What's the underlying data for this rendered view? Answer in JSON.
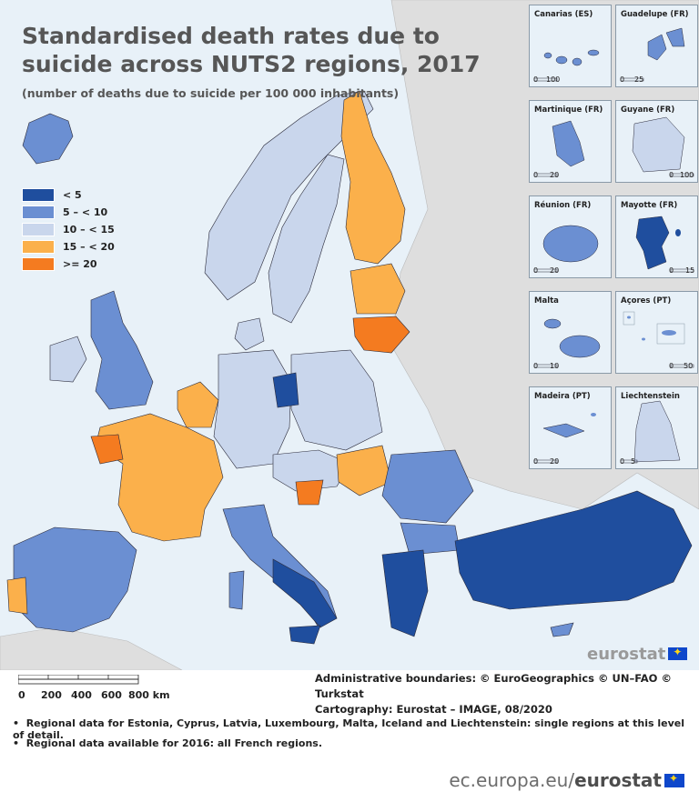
{
  "title": "Standardised death rates due to suicide across NUTS2 regions, 2017",
  "subtitle": "(number of deaths due to suicide per 100 000 inhabitants)",
  "colors": {
    "sea": "#e8f1f8",
    "non_eu_land": "#dedede",
    "border": "#2a2a3a",
    "lt5": "#1f4e9e",
    "c5_10": "#6b8fd2",
    "c10_15": "#c9d6ec",
    "c15_20": "#fbb04b",
    "ge20": "#f47b20"
  },
  "legend": [
    {
      "label": "< 5",
      "color": "#1f4e9e"
    },
    {
      "label": "5 – < 10",
      "color": "#6b8fd2"
    },
    {
      "label": "10 – < 15",
      "color": "#c9d6ec"
    },
    {
      "label": "15 – < 20",
      "color": "#fbb04b"
    },
    {
      "label": ">= 20",
      "color": "#f47b20"
    }
  ],
  "insets": [
    {
      "name": "Canarias (ES)",
      "scale": [
        "0",
        "100"
      ]
    },
    {
      "name": "Guadelupe (FR)",
      "scale": [
        "0",
        "25"
      ]
    },
    {
      "name": "Martinique (FR)",
      "scale": [
        "0",
        "20"
      ]
    },
    {
      "name": "Guyane (FR)",
      "scale": [
        "0",
        "100"
      ]
    },
    {
      "name": "Réunion (FR)",
      "scale": [
        "0",
        "20"
      ]
    },
    {
      "name": "Mayotte (FR)",
      "scale": [
        "0",
        "15"
      ]
    },
    {
      "name": "Malta",
      "scale": [
        "0",
        "10"
      ]
    },
    {
      "name": "Açores (PT)",
      "scale": [
        "0",
        "50"
      ]
    },
    {
      "name": "Madeira (PT)",
      "scale": [
        "0",
        "20"
      ]
    },
    {
      "name": "Liechtenstein",
      "scale": [
        "0",
        "5"
      ]
    }
  ],
  "logo": "eurostat",
  "scale_bar": {
    "ticks": [
      "0",
      "200",
      "400",
      "600",
      "800 km"
    ]
  },
  "credits": {
    "line1": "Administrative boundaries: © EuroGeographics © UN–FAO © Turkstat",
    "line2": "Cartography: Eurostat – IMAGE, 08/2020"
  },
  "notes": [
    "Regional data for Estonia, Cyprus, Latvia, Luxembourg, Malta, Iceland and Liechtenstein: single regions at this level of detail.",
    "Regional data available for 2016: all French regions."
  ],
  "footer": {
    "domain": "ec.europa.eu/",
    "brand": "eurostat"
  }
}
